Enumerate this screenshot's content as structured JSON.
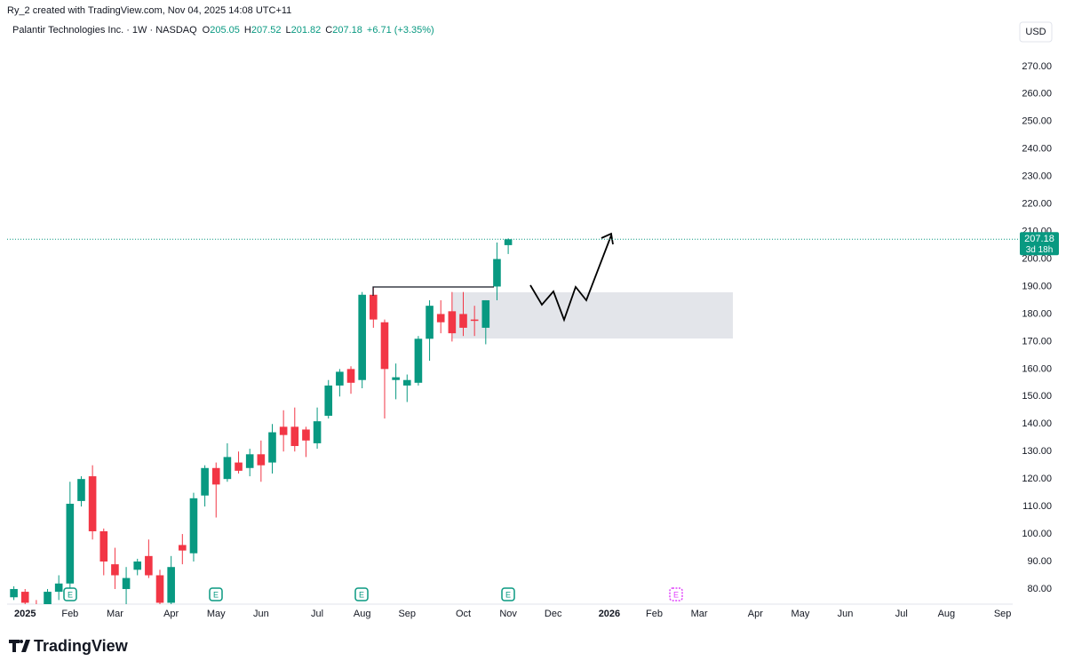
{
  "header": "Ry_2 created with TradingView.com, Nov 04, 2025 14:08 UTC+11",
  "logo": "TradingView",
  "chart_data": {
    "type": "candlestick",
    "title": "Palantir Technologies Inc. · 1W · NASDAQ",
    "ohlc_letters": [
      "O",
      "H",
      "L",
      "C"
    ],
    "change": "+6.71 (+3.35%)",
    "currency": "USD",
    "countdown": "3d 18h",
    "up_color": "#089981",
    "down_color": "#f23645",
    "last_price_line": true,
    "x": [
      0,
      1,
      2,
      3,
      4,
      5,
      6,
      7,
      8,
      9,
      10,
      11,
      12,
      13,
      14,
      15,
      16,
      17,
      18,
      19,
      20,
      21,
      22,
      23,
      24,
      25,
      26,
      27,
      28,
      29,
      30,
      31,
      32,
      33,
      34,
      35,
      36,
      37,
      38,
      39,
      40,
      41,
      42,
      43,
      44
    ],
    "open": [
      77,
      79,
      74,
      71,
      79,
      82,
      112,
      121,
      101,
      89,
      80,
      87,
      92,
      85,
      75,
      96,
      93,
      114,
      124,
      120,
      126,
      124,
      129,
      126,
      139,
      139,
      138,
      133,
      143,
      154,
      160,
      156,
      187,
      177,
      156,
      154,
      155,
      171,
      180,
      181,
      180,
      178,
      175,
      190,
      205.05
    ],
    "high": [
      81,
      80,
      76,
      80,
      85,
      119,
      121,
      125,
      102,
      95,
      88,
      91,
      98,
      87,
      92,
      100,
      115,
      125,
      126,
      133,
      130,
      131,
      134,
      140,
      145,
      146,
      139,
      146,
      156,
      160,
      161,
      188,
      190,
      178,
      162,
      158,
      172,
      185,
      185,
      188,
      188,
      183,
      185,
      206,
      207.52
    ],
    "low": [
      76,
      72,
      66,
      70,
      76,
      78,
      110,
      98,
      85,
      80,
      74,
      85,
      84,
      74,
      66,
      89,
      90,
      110,
      106,
      119,
      122,
      121,
      119,
      122,
      130,
      130,
      128,
      131,
      142,
      150,
      151,
      153,
      175,
      142,
      149,
      148,
      154,
      163,
      173,
      170,
      172,
      172,
      169,
      185,
      201.82
    ],
    "close": [
      80,
      75,
      71,
      79,
      82,
      111,
      120,
      101,
      90,
      85,
      84,
      90,
      85,
      75,
      88,
      94,
      113,
      124,
      118,
      128,
      123,
      129,
      125,
      137,
      136,
      132,
      134,
      141,
      154,
      159,
      155,
      187,
      178,
      160,
      157,
      156,
      171,
      183,
      177,
      173,
      175,
      177.5,
      185,
      200,
      207.18
    ],
    "xlim": [
      -0.6,
      88.9
    ],
    "xticks": [
      {
        "value": 1,
        "label": "2025"
      },
      {
        "value": 5,
        "label": "Feb"
      },
      {
        "value": 9,
        "label": "Mar"
      },
      {
        "value": 14,
        "label": "Apr"
      },
      {
        "value": 18,
        "label": "May"
      },
      {
        "value": 22,
        "label": "Jun"
      },
      {
        "value": 27,
        "label": "Jul"
      },
      {
        "value": 31,
        "label": "Aug"
      },
      {
        "value": 35,
        "label": "Sep"
      },
      {
        "value": 40,
        "label": "Oct"
      },
      {
        "value": 44,
        "label": "Nov"
      },
      {
        "value": 48,
        "label": "Dec"
      },
      {
        "value": 53,
        "label": "2026"
      },
      {
        "value": 57,
        "label": "Feb"
      },
      {
        "value": 61,
        "label": "Mar"
      },
      {
        "value": 66,
        "label": "Apr"
      },
      {
        "value": 70,
        "label": "May"
      },
      {
        "value": 74,
        "label": "Jun"
      },
      {
        "value": 79,
        "label": "Jul"
      },
      {
        "value": 83,
        "label": "Aug"
      },
      {
        "value": 88,
        "label": "Sep"
      }
    ],
    "ylim": [
      74.5,
      279
    ],
    "yticks": [
      {
        "value": 80,
        "label": "80.00"
      },
      {
        "value": 90,
        "label": "90.00"
      },
      {
        "value": 100,
        "label": "100.00"
      },
      {
        "value": 110,
        "label": "110.00"
      },
      {
        "value": 120,
        "label": "120.00"
      },
      {
        "value": 130,
        "label": "130.00"
      },
      {
        "value": 140,
        "label": "140.00"
      },
      {
        "value": 150,
        "label": "150.00"
      },
      {
        "value": 160,
        "label": "160.00"
      },
      {
        "value": 170,
        "label": "170.00"
      },
      {
        "value": 180,
        "label": "180.00"
      },
      {
        "value": 190,
        "label": "190.00"
      },
      {
        "value": 200,
        "label": "200.00"
      },
      {
        "value": 210,
        "label": "210.00"
      },
      {
        "value": 220,
        "label": "220.00"
      },
      {
        "value": 230,
        "label": "230.00"
      },
      {
        "value": 240,
        "label": "240.00"
      },
      {
        "value": 250,
        "label": "250.00"
      },
      {
        "value": 260,
        "label": "260.00"
      },
      {
        "value": 270,
        "label": "270.00"
      }
    ]
  }
}
